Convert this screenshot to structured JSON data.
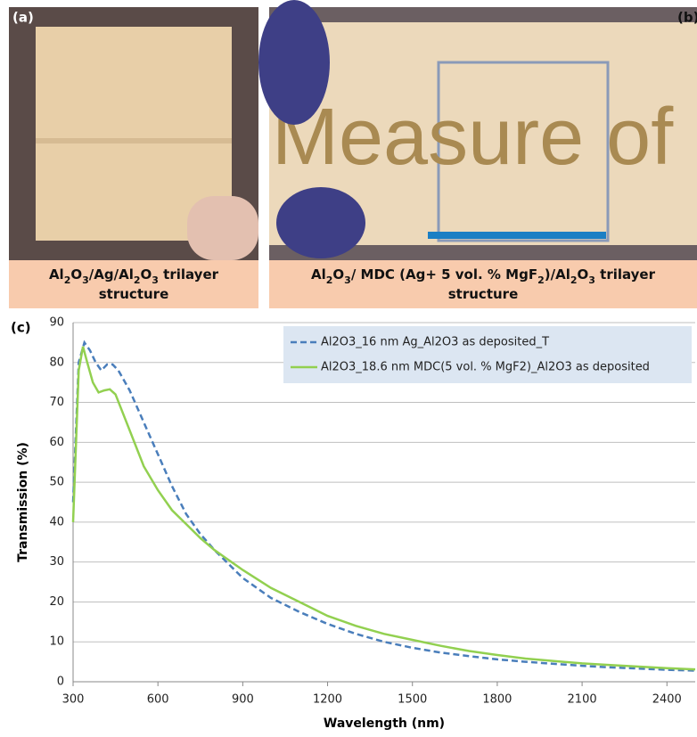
{
  "panels": {
    "a": {
      "label": "(a)",
      "caption": [
        [
          "Al",
          "2",
          "O",
          "3",
          "/Ag/Al",
          "2",
          "O",
          "3",
          " trilayer"
        ],
        [
          "structure"
        ]
      ]
    },
    "b": {
      "label": "(b)",
      "photo_text": "Measure of",
      "caption": [
        [
          "Al",
          "2",
          "O",
          "3",
          "/ MDC (Ag+ 5 vol. % MgF",
          "2",
          ")/Al",
          "2",
          "O",
          "3",
          " trilayer"
        ],
        [
          "structure"
        ]
      ]
    },
    "c": {
      "label": "(c)"
    }
  },
  "chart_data": {
    "type": "line",
    "x_label": "Wavelength (nm)",
    "y_label": "Transmission (%)",
    "xlim": [
      300,
      2500
    ],
    "xticks": [
      300,
      600,
      900,
      1200,
      1500,
      1800,
      2100,
      2400
    ],
    "ylim": [
      0,
      90
    ],
    "yticks": [
      0,
      10,
      20,
      30,
      40,
      50,
      60,
      70,
      80,
      90
    ],
    "grid": true,
    "legend": "top-right",
    "series": [
      {
        "name": "Al2O3_16 nm Ag_Al2O3 as deposited_T",
        "color": "#4a7ebb",
        "dashed": true,
        "x": [
          300,
          320,
          340,
          360,
          380,
          400,
          420,
          440,
          460,
          500,
          550,
          600,
          650,
          700,
          750,
          800,
          900,
          1000,
          1100,
          1200,
          1300,
          1400,
          1500,
          1600,
          1700,
          1800,
          1900,
          2000,
          2100,
          2200,
          2300,
          2400,
          2500
        ],
        "values": [
          45,
          80,
          85,
          83,
          80,
          78,
          79.5,
          79.5,
          78,
          73,
          65,
          57,
          49,
          42,
          37,
          33,
          26,
          21,
          17.5,
          14.5,
          12,
          10,
          8.5,
          7.3,
          6.4,
          5.6,
          5,
          4.5,
          4,
          3.6,
          3.3,
          3,
          2.8
        ]
      },
      {
        "name": "Al2O3_18.6 nm MDC(5 vol. % MgF2)_Al2O3 as deposited",
        "color": "#92d050",
        "dashed": false,
        "x": [
          300,
          320,
          335,
          350,
          370,
          390,
          410,
          430,
          450,
          500,
          550,
          600,
          650,
          700,
          750,
          800,
          900,
          1000,
          1100,
          1200,
          1300,
          1400,
          1500,
          1600,
          1700,
          1800,
          1900,
          2000,
          2100,
          2200,
          2300,
          2400,
          2500
        ],
        "values": [
          40,
          78,
          84,
          80,
          75,
          72.5,
          73,
          73.3,
          72,
          63,
          54,
          48,
          43,
          39.5,
          36,
          33,
          28,
          23.5,
          20,
          16.5,
          14,
          12,
          10.5,
          9,
          7.7,
          6.7,
          5.8,
          5.2,
          4.6,
          4.2,
          3.8,
          3.4,
          3.1
        ]
      }
    ]
  }
}
